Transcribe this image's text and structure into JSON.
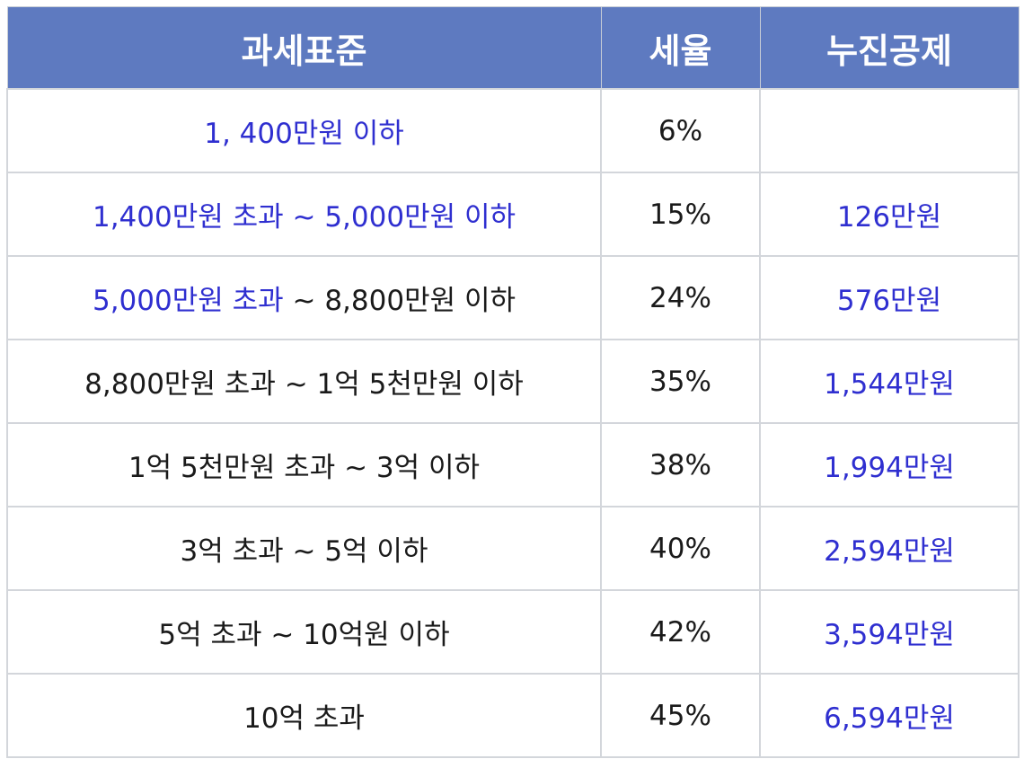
{
  "table": {
    "headers": [
      "과세표준",
      "세율",
      "누진공제"
    ],
    "rows": [
      {
        "bracket_blue": "1, 400만원 이하",
        "bracket_rest": "",
        "rate": "6%",
        "deduction": ""
      },
      {
        "bracket_blue": "1,400만원 초과 ~ 5,000만원 이하",
        "bracket_rest": "",
        "rate": "15%",
        "deduction": "126만원"
      },
      {
        "bracket_blue": "5,000만원 초과",
        "bracket_rest": " ~ 8,800만원 이하",
        "rate": "24%",
        "deduction": "576만원"
      },
      {
        "bracket_blue": "",
        "bracket_rest": "8,800만원 초과 ~ 1억 5천만원 이하",
        "rate": "35%",
        "deduction": "1,544만원"
      },
      {
        "bracket_blue": "",
        "bracket_rest": "1억 5천만원 초과 ~ 3억 이하",
        "rate": "38%",
        "deduction": "1,994만원"
      },
      {
        "bracket_blue": "",
        "bracket_rest": "3억 초과 ~ 5억 이하",
        "rate": "40%",
        "deduction": "2,594만원"
      },
      {
        "bracket_blue": "",
        "bracket_rest": "5억 초과 ~ 10억원 이하",
        "rate": "42%",
        "deduction": "3,594만원"
      },
      {
        "bracket_blue": "",
        "bracket_rest": "10억 초과",
        "rate": "45%",
        "deduction": "6,594만원"
      }
    ]
  },
  "colors": {
    "header_bg": "#5e7ac0",
    "header_text": "#ffffff",
    "highlight_text": "#2f2fd0",
    "body_text": "#1a1a1a",
    "border": "#d3d6db"
  }
}
